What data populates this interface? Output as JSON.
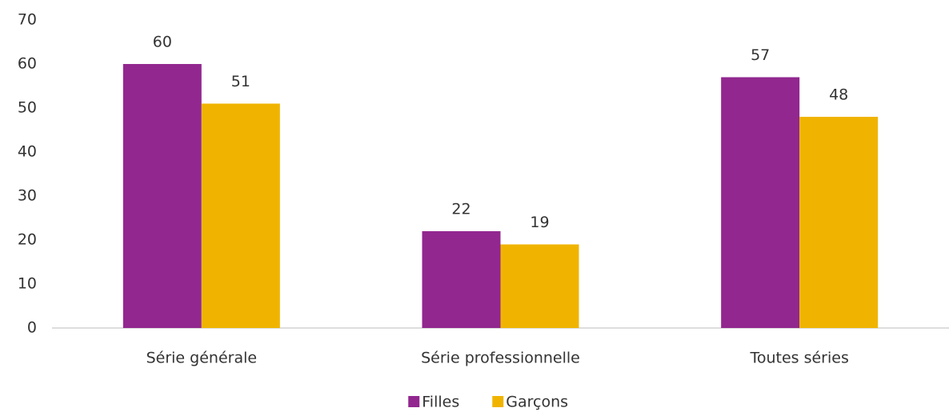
{
  "chart_data": {
    "type": "bar",
    "categories": [
      "Série générale",
      "Série professionnelle",
      "Toutes séries"
    ],
    "series": [
      {
        "name": "Filles",
        "color": "#92278f",
        "values": [
          60,
          22,
          57
        ]
      },
      {
        "name": "Garçons",
        "color": "#f0b400",
        "values": [
          51,
          19,
          48
        ]
      }
    ],
    "ylim": [
      0,
      70
    ],
    "yticks": [
      0,
      10,
      20,
      30,
      40,
      50,
      60,
      70
    ],
    "grid": false,
    "legend": "bottom"
  }
}
